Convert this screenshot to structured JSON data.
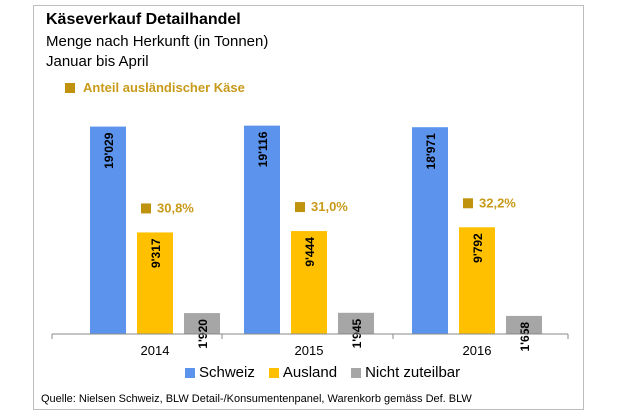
{
  "header": {
    "title": "Käseverkauf Detailhandel",
    "subtitle_1": "Menge nach Herkunft (in Tonnen)",
    "subtitle_2": "Januar bis April"
  },
  "share_legend_label": "Anteil ausländischer Käse",
  "source": "Quelle: Nielsen Schweiz, BLW Detail-/Konsumentenpanel, Warenkorb gemäss Def. BLW",
  "colors": {
    "schweiz": "#5b93ed",
    "ausland": "#ffc000",
    "nicht": "#a6a6a6",
    "share": "#c0930f",
    "share_text": "#c89a1a"
  },
  "chart_data": {
    "type": "bar",
    "categories": [
      "2014",
      "2015",
      "2016"
    ],
    "series": [
      {
        "name": "Schweiz",
        "values": [
          19029,
          19116,
          18971
        ],
        "labels": [
          "19'029",
          "19'116",
          "18'971"
        ]
      },
      {
        "name": "Ausland",
        "values": [
          9317,
          9444,
          9792
        ],
        "labels": [
          "9'317",
          "9'444",
          "9'792"
        ]
      },
      {
        "name": "Nicht zuteilbar",
        "values": [
          1920,
          1945,
          1658
        ],
        "labels": [
          "1'920",
          "1'945",
          "1'658"
        ]
      }
    ],
    "annotations": {
      "name": "Anteil ausländischer Käse",
      "values": [
        "30,8%",
        "31,0%",
        "32,2%"
      ]
    },
    "ylim": [
      0,
      20000
    ],
    "grid": false,
    "legend": "bottom"
  }
}
